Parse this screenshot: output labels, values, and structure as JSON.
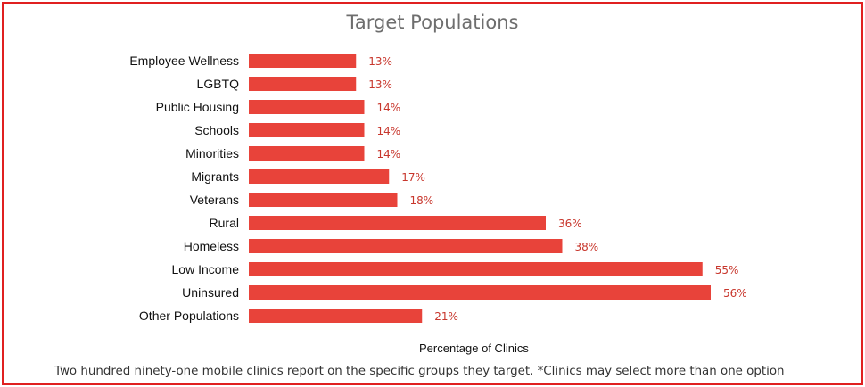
{
  "chart_data": {
    "type": "bar",
    "orientation": "horizontal",
    "title": "Target Populations",
    "xlabel": "Percentage of Clinics",
    "ylabel": "",
    "categories": [
      "Employee Wellness",
      "LGBTQ",
      "Public Housing",
      "Schools",
      "Minorities",
      "Migrants",
      "Veterans",
      "Rural",
      "Homeless",
      "Low Income",
      "Uninsured",
      "Other Populations"
    ],
    "values": [
      13,
      13,
      14,
      14,
      14,
      17,
      18,
      36,
      38,
      55,
      56,
      21
    ],
    "value_labels": [
      "13%",
      "13%",
      "14%",
      "14%",
      "14%",
      "17%",
      "18%",
      "36%",
      "38%",
      "55%",
      "56%",
      "21%"
    ],
    "xlim": [
      0,
      60
    ],
    "grid": false,
    "bar_color": "#e8433a",
    "value_label_color": "#c8372d"
  },
  "footnote": "Two hundred ninety-one mobile clinics report on the specific groups they target. *Clinics may select more than one option",
  "colors": {
    "border": "#e02020"
  }
}
